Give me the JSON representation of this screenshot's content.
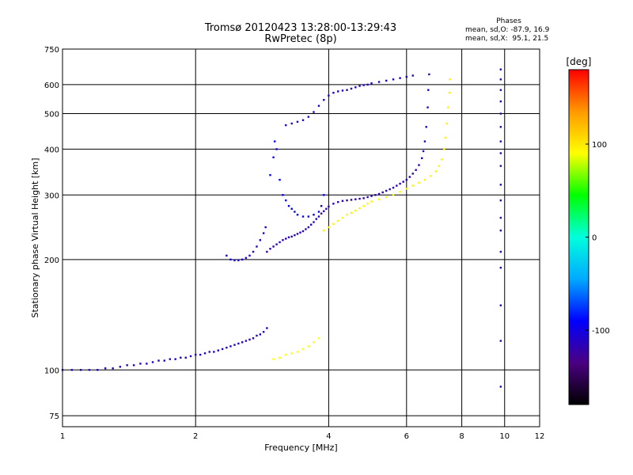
{
  "header": {
    "title_line1": "Tromsø 20120423 13:28:00-13:29:43",
    "title_line2": "RwPretec (8p)"
  },
  "phases": {
    "heading": "Phases",
    "line1": "mean, sd,O: -87.9, 16.9",
    "line2": "mean, sd,X:  95.1, 21.5"
  },
  "chart_data": {
    "type": "scatter",
    "title": "Tromsø 20120423 13:28:00-13:29:43",
    "subtitle": "RwPretec (8p)",
    "xlabel": "Frequency [MHz]",
    "ylabel": "Stationary phase Virtual Height [km]",
    "xscale": "log",
    "yscale": "log",
    "xlim": [
      1,
      12
    ],
    "ylim": [
      70,
      750
    ],
    "grid": true,
    "xticks": [
      1,
      2,
      4,
      6,
      8,
      10,
      12
    ],
    "yticks": [
      75,
      100,
      200,
      300,
      400,
      500,
      600,
      750
    ],
    "colorbar": {
      "label": "[deg]",
      "ticks": [
        100,
        0,
        -100
      ],
      "range": [
        -180,
        180
      ],
      "colors": [
        "#000000",
        "#4b0082",
        "#0000ff",
        "#00aaff",
        "#00ffdd",
        "#00ff00",
        "#ffff00",
        "#ff9900",
        "#ff0000"
      ]
    },
    "series": [
      {
        "points": [
          [
            1.0,
            100
          ],
          [
            1.05,
            100
          ],
          [
            1.1,
            100
          ],
          [
            1.15,
            100
          ],
          [
            1.2,
            100
          ],
          [
            1.25,
            101
          ],
          [
            1.3,
            101
          ],
          [
            1.35,
            102
          ],
          [
            1.4,
            103
          ],
          [
            1.45,
            103
          ],
          [
            1.5,
            104
          ],
          [
            1.55,
            104
          ],
          [
            1.6,
            105
          ],
          [
            1.65,
            106
          ],
          [
            1.7,
            106
          ],
          [
            1.75,
            107
          ],
          [
            1.8,
            107
          ],
          [
            1.85,
            108
          ],
          [
            1.9,
            108
          ],
          [
            1.95,
            109
          ],
          [
            2.0,
            110
          ],
          [
            2.05,
            110
          ],
          [
            2.1,
            111
          ],
          [
            2.15,
            112
          ],
          [
            2.2,
            112
          ],
          [
            2.25,
            113
          ],
          [
            2.3,
            114
          ],
          [
            2.35,
            115
          ],
          [
            2.4,
            116
          ],
          [
            2.45,
            117
          ],
          [
            2.5,
            118
          ],
          [
            2.55,
            119
          ],
          [
            2.6,
            120
          ],
          [
            2.65,
            121
          ],
          [
            2.7,
            122
          ],
          [
            2.75,
            124
          ],
          [
            2.8,
            125
          ],
          [
            2.85,
            127
          ],
          [
            2.9,
            130
          ]
        ],
        "phase": -110
      },
      {
        "points": [
          [
            2.35,
            205
          ],
          [
            2.4,
            200
          ],
          [
            2.45,
            199
          ],
          [
            2.5,
            199
          ],
          [
            2.55,
            200
          ],
          [
            2.6,
            202
          ],
          [
            2.65,
            205
          ],
          [
            2.7,
            210
          ],
          [
            2.75,
            217
          ],
          [
            2.8,
            226
          ],
          [
            2.85,
            236
          ],
          [
            2.88,
            245
          ]
        ],
        "phase": -105
      },
      {
        "points": [
          [
            2.9,
            210
          ],
          [
            2.95,
            214
          ],
          [
            3.0,
            217
          ],
          [
            3.05,
            220
          ],
          [
            3.1,
            223
          ],
          [
            3.15,
            226
          ],
          [
            3.2,
            228
          ],
          [
            3.25,
            230
          ],
          [
            3.3,
            231
          ],
          [
            3.35,
            233
          ],
          [
            3.4,
            235
          ],
          [
            3.45,
            237
          ],
          [
            3.5,
            239
          ],
          [
            3.55,
            242
          ],
          [
            3.6,
            245
          ],
          [
            3.65,
            249
          ],
          [
            3.7,
            253
          ],
          [
            3.75,
            258
          ],
          [
            3.8,
            262
          ],
          [
            3.85,
            267
          ],
          [
            3.9,
            271
          ],
          [
            3.95,
            275
          ],
          [
            4.0,
            279
          ],
          [
            4.1,
            284
          ],
          [
            4.2,
            287
          ],
          [
            4.3,
            289
          ],
          [
            4.4,
            290
          ],
          [
            4.5,
            291
          ],
          [
            4.6,
            292
          ],
          [
            4.7,
            293
          ],
          [
            4.8,
            294
          ],
          [
            4.9,
            296
          ],
          [
            5.0,
            298
          ],
          [
            5.1,
            300
          ],
          [
            5.2,
            302
          ],
          [
            5.3,
            305
          ],
          [
            5.4,
            308
          ],
          [
            5.5,
            311
          ],
          [
            5.6,
            314
          ],
          [
            5.7,
            318
          ],
          [
            5.8,
            322
          ],
          [
            5.9,
            326
          ],
          [
            6.0,
            330
          ],
          [
            6.1,
            336
          ],
          [
            6.2,
            343
          ],
          [
            6.3,
            351
          ],
          [
            6.4,
            362
          ],
          [
            6.5,
            378
          ],
          [
            6.55,
            395
          ],
          [
            6.6,
            420
          ],
          [
            6.65,
            460
          ],
          [
            6.7,
            520
          ],
          [
            6.72,
            580
          ],
          [
            6.75,
            640
          ]
        ],
        "phase": -115
      },
      {
        "points": [
          [
            2.95,
            340
          ],
          [
            3.0,
            380
          ],
          [
            3.02,
            420
          ],
          [
            3.05,
            400
          ],
          [
            3.1,
            330
          ],
          [
            3.15,
            300
          ],
          [
            3.2,
            290
          ],
          [
            3.25,
            280
          ],
          [
            3.3,
            275
          ],
          [
            3.35,
            270
          ],
          [
            3.4,
            265
          ],
          [
            3.5,
            262
          ],
          [
            3.6,
            262
          ],
          [
            3.7,
            265
          ],
          [
            3.8,
            270
          ],
          [
            3.85,
            280
          ],
          [
            3.9,
            300
          ]
        ],
        "phase": -95
      },
      {
        "points": [
          [
            3.2,
            465
          ],
          [
            3.3,
            470
          ],
          [
            3.4,
            475
          ],
          [
            3.5,
            480
          ],
          [
            3.6,
            490
          ],
          [
            3.7,
            505
          ],
          [
            3.8,
            525
          ],
          [
            3.9,
            545
          ],
          [
            4.0,
            560
          ],
          [
            4.1,
            570
          ],
          [
            4.2,
            575
          ],
          [
            4.3,
            578
          ],
          [
            4.4,
            580
          ],
          [
            4.5,
            585
          ],
          [
            4.6,
            590
          ],
          [
            4.7,
            595
          ],
          [
            4.8,
            598
          ],
          [
            4.9,
            600
          ],
          [
            5.0,
            605
          ],
          [
            5.2,
            610
          ],
          [
            5.4,
            615
          ],
          [
            5.6,
            620
          ],
          [
            5.8,
            625
          ],
          [
            6.0,
            630
          ],
          [
            6.2,
            635
          ]
        ],
        "phase": -110
      },
      {
        "points": [
          [
            3.9,
            240
          ],
          [
            4.0,
            245
          ],
          [
            4.1,
            250
          ],
          [
            4.2,
            255
          ],
          [
            4.3,
            260
          ],
          [
            4.4,
            265
          ],
          [
            4.5,
            268
          ],
          [
            4.6,
            272
          ],
          [
            4.7,
            276
          ],
          [
            4.8,
            280
          ],
          [
            4.9,
            284
          ],
          [
            5.0,
            288
          ],
          [
            5.2,
            292
          ],
          [
            5.4,
            296
          ],
          [
            5.6,
            300
          ],
          [
            5.8,
            306
          ],
          [
            6.0,
            312
          ],
          [
            6.2,
            318
          ],
          [
            6.4,
            324
          ],
          [
            6.6,
            330
          ],
          [
            6.8,
            338
          ],
          [
            7.0,
            348
          ],
          [
            7.1,
            360
          ],
          [
            7.2,
            375
          ],
          [
            7.3,
            400
          ],
          [
            7.35,
            430
          ],
          [
            7.4,
            470
          ],
          [
            7.45,
            520
          ],
          [
            7.5,
            570
          ],
          [
            7.52,
            620
          ]
        ],
        "phase": 95
      },
      {
        "points": [
          [
            3.0,
            107
          ],
          [
            3.1,
            108
          ],
          [
            3.2,
            110
          ],
          [
            3.3,
            111
          ],
          [
            3.4,
            112
          ],
          [
            3.5,
            114
          ],
          [
            3.6,
            116
          ],
          [
            3.7,
            119
          ],
          [
            3.8,
            122
          ]
        ],
        "phase": 90
      },
      {
        "points": [
          [
            9.8,
            90
          ],
          [
            9.8,
            120
          ],
          [
            9.8,
            150
          ],
          [
            9.8,
            190
          ],
          [
            9.8,
            210
          ],
          [
            9.8,
            240
          ],
          [
            9.8,
            260
          ],
          [
            9.8,
            290
          ],
          [
            9.8,
            320
          ],
          [
            9.8,
            360
          ],
          [
            9.8,
            390
          ],
          [
            9.8,
            420
          ],
          [
            9.8,
            460
          ],
          [
            9.8,
            500
          ],
          [
            9.8,
            540
          ],
          [
            9.8,
            580
          ],
          [
            9.8,
            620
          ],
          [
            9.8,
            660
          ]
        ],
        "phase": -120
      }
    ]
  }
}
